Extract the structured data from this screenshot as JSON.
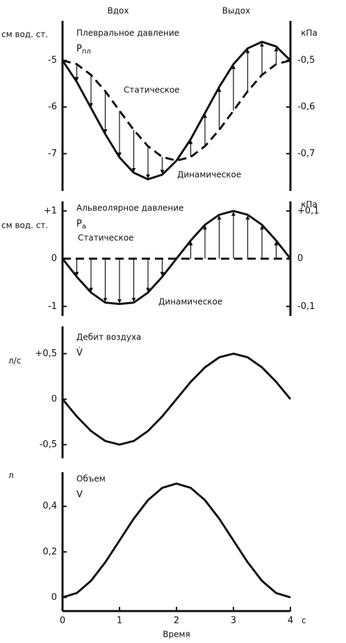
{
  "header": {
    "inspiration": "Вдох",
    "expiration": "Выдох"
  },
  "chart_data": [
    {
      "type": "line",
      "title": "Плевральное давление",
      "symbol": "P",
      "symbol_sub": "пл",
      "y_label": "см вод. ст.",
      "y2_label": "кПа",
      "x": [
        0,
        0.25,
        0.5,
        0.75,
        1,
        1.25,
        1.5,
        1.75,
        2,
        2.25,
        2.5,
        2.75,
        3,
        3.25,
        3.5,
        3.75,
        4
      ],
      "xlim": [
        0,
        4
      ],
      "ylim": [
        -7.8,
        -4.15
      ],
      "yticks": [
        -5,
        -6,
        -7
      ],
      "y2lim": [
        -0.78,
        -0.415
      ],
      "y2ticks": [
        {
          "value": -0.5,
          "label": "-0,5"
        },
        {
          "value": -0.6,
          "label": "-0,6"
        },
        {
          "value": -0.7,
          "label": "-0,7"
        }
      ],
      "arrows": true,
      "series": [
        {
          "name": "Статическое",
          "color": "#111111",
          "line_style": "dashed",
          "values": [
            -5,
            -5.08,
            -5.31,
            -5.66,
            -6.08,
            -6.49,
            -6.84,
            -7.07,
            -7.15,
            -7.07,
            -6.84,
            -6.49,
            -6.08,
            -5.66,
            -5.31,
            -5.08,
            -5
          ]
        },
        {
          "name": "Динамическое",
          "color": "#111111",
          "line_style": "solid",
          "values": [
            -5,
            -5.46,
            -6.02,
            -6.58,
            -7.08,
            -7.41,
            -7.55,
            -7.45,
            -7.15,
            -6.69,
            -6.13,
            -5.57,
            -5.08,
            -4.74,
            -4.6,
            -4.7,
            -5
          ]
        }
      ]
    },
    {
      "type": "line",
      "title": "Альвеолярное давление",
      "symbol": "P",
      "symbol_sub": "а",
      "y_label": "см вод. ст.",
      "y2_label": "кПа",
      "x": [
        0,
        0.25,
        0.5,
        0.75,
        1,
        1.25,
        1.5,
        1.75,
        2,
        2.25,
        2.5,
        2.75,
        3,
        3.25,
        3.5,
        3.75,
        4
      ],
      "xlim": [
        0,
        4
      ],
      "ylim": [
        -1.2,
        1.2
      ],
      "yticks": [
        {
          "value": 1,
          "label": "+1"
        },
        0,
        -1
      ],
      "y2lim": [
        -0.12,
        0.12
      ],
      "y2ticks": [
        {
          "value": 0.1,
          "label": "+0,1"
        },
        0,
        {
          "value": -0.1,
          "label": "-0,1"
        }
      ],
      "arrows": true,
      "series": [
        {
          "name": "Статическое",
          "color": "#111111",
          "line_style": "dashed",
          "values": [
            0,
            0,
            0,
            0,
            0,
            0,
            0,
            0,
            0,
            0,
            0,
            0,
            0,
            0,
            0,
            0,
            0
          ]
        },
        {
          "name": "Динамическое",
          "color": "#111111",
          "line_style": "solid",
          "values": [
            0,
            -0.38,
            -0.71,
            -0.92,
            -0.95,
            -0.92,
            -0.71,
            -0.38,
            0,
            0.38,
            0.71,
            0.92,
            1,
            0.92,
            0.71,
            0.38,
            0
          ]
        }
      ]
    },
    {
      "type": "line",
      "title": "Дебит воздуха",
      "symbol": "V̇",
      "y_label": "л/с",
      "x": [
        0,
        0.25,
        0.5,
        0.75,
        1,
        1.25,
        1.5,
        1.75,
        2,
        2.25,
        2.5,
        2.75,
        3,
        3.25,
        3.5,
        3.75,
        4
      ],
      "xlim": [
        0,
        4
      ],
      "ylim": [
        -0.65,
        0.8
      ],
      "yticks": [
        {
          "value": 0.5,
          "label": "+0,5"
        },
        0,
        {
          "value": -0.5,
          "label": "-0,5"
        }
      ],
      "series": [
        {
          "color": "#111111",
          "line_style": "solid",
          "values": [
            0,
            -0.19,
            -0.35,
            -0.46,
            -0.5,
            -0.46,
            -0.35,
            -0.19,
            0,
            0.19,
            0.35,
            0.46,
            0.5,
            0.46,
            0.35,
            0.19,
            0
          ]
        }
      ]
    },
    {
      "type": "line",
      "title": "Объем",
      "symbol": "V",
      "y_label": "л",
      "x_label": "Время",
      "x_unit": "с",
      "x": [
        0,
        0.25,
        0.5,
        0.75,
        1,
        1.25,
        1.5,
        1.75,
        2,
        2.25,
        2.5,
        2.75,
        3,
        3.25,
        3.5,
        3.75,
        4
      ],
      "xlim": [
        0,
        4
      ],
      "xticks": [
        0,
        1,
        2,
        3,
        4
      ],
      "ylim": [
        -0.06,
        0.55
      ],
      "yticks": [
        {
          "value": 0.4,
          "label": "0,4"
        },
        {
          "value": 0.2,
          "label": "0,2"
        },
        0
      ],
      "series": [
        {
          "color": "#111111",
          "line_style": "solid",
          "values": [
            0,
            0.019,
            0.073,
            0.154,
            0.25,
            0.346,
            0.427,
            0.481,
            0.5,
            0.481,
            0.427,
            0.346,
            0.25,
            0.154,
            0.073,
            0.019,
            0
          ]
        }
      ]
    }
  ]
}
